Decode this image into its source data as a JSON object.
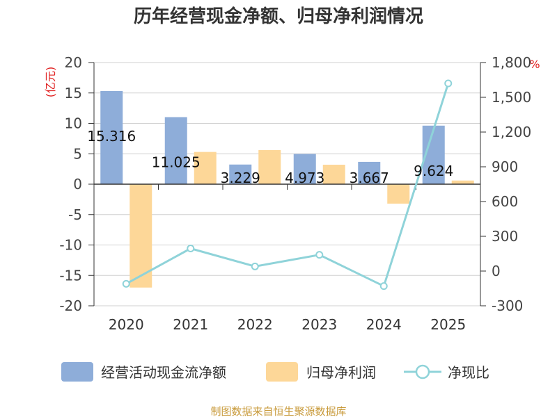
{
  "chart_data": {
    "type": "bar",
    "title": "历年经营现金净额、归母净利润情况",
    "categories": [
      "2020",
      "2021",
      "2022",
      "2023",
      "2024",
      "2025"
    ],
    "left_axis": {
      "unit": "(亿元)",
      "min": -20,
      "max": 20,
      "ticks": [
        "20",
        "15",
        "10",
        "5",
        "0",
        "-5",
        "-10",
        "-15",
        "-20"
      ]
    },
    "right_axis": {
      "unit": "%",
      "min": -300,
      "max": 1800,
      "ticks": [
        "1,800",
        "1,500",
        "1,200",
        "900",
        "600",
        "300",
        "0",
        "-300"
      ]
    },
    "series": [
      {
        "name": "经营活动现金流净额",
        "type": "bar",
        "axis": "left",
        "color": "#8eadd9",
        "values": [
          15.316,
          11.025,
          3.229,
          4.973,
          3.667,
          9.624
        ],
        "labels": [
          "15.316",
          "11.025",
          "3.229",
          "4.973",
          "3.667",
          "9.624"
        ]
      },
      {
        "name": "归母净利润",
        "type": "bar",
        "axis": "left",
        "color": "#fdd798",
        "values": [
          -17,
          5.3,
          5.6,
          3.2,
          -3.2,
          0.6
        ]
      },
      {
        "name": "净现比",
        "type": "line",
        "axis": "right",
        "color": "#8fd3d9",
        "values": [
          -110,
          195,
          40,
          140,
          -130,
          1620
        ]
      }
    ],
    "source": "制图数据来自恒生聚源数据库"
  }
}
